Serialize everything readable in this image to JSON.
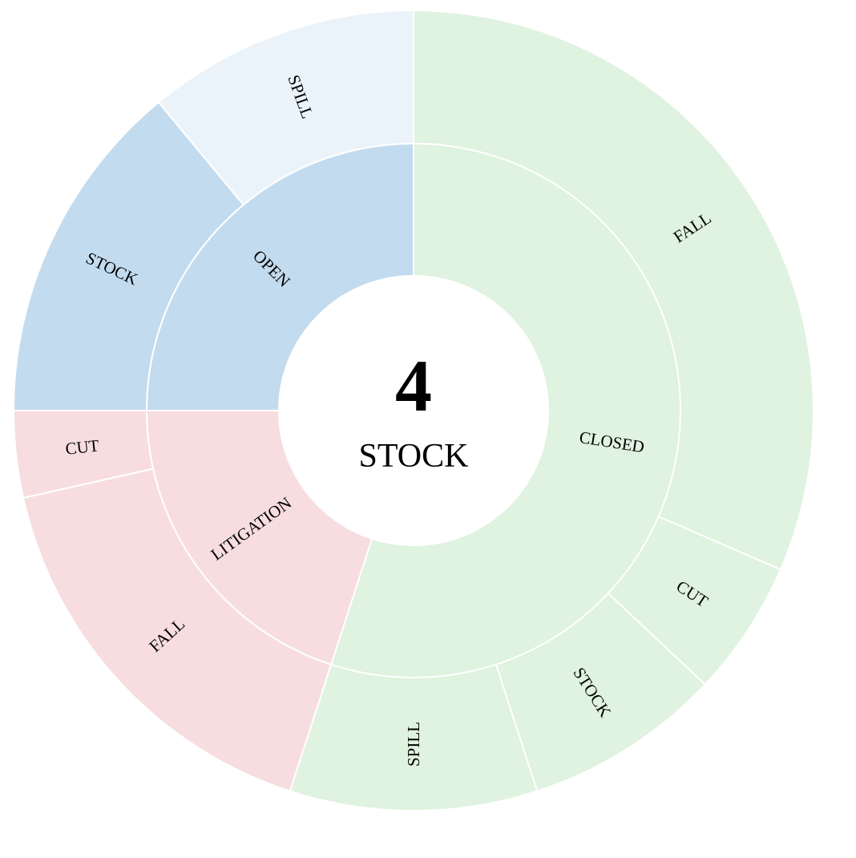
{
  "chart_data": {
    "type": "sunburst",
    "center": {
      "value": "4",
      "label": "STOCK"
    },
    "rings": [
      "status",
      "type"
    ],
    "nodes": [
      {
        "label": "CLOSED",
        "value": 55,
        "color": "#e0f2e0",
        "children": [
          {
            "label": "FALL",
            "value": 31.5
          },
          {
            "label": "CUT",
            "value": 5.5
          },
          {
            "label": "STOCK",
            "value": 8
          },
          {
            "label": "SPILL",
            "value": 10
          }
        ]
      },
      {
        "label": "LITIGATION",
        "value": 20,
        "color": "#f7dde0",
        "children": [
          {
            "label": "FALL",
            "value": 16.5
          },
          {
            "label": "CUT",
            "value": 3.5
          }
        ]
      },
      {
        "label": "OPEN",
        "value": 25,
        "color": "#c3dbee",
        "children": [
          {
            "label": "STOCK",
            "value": 14,
            "color": "#c3dbee"
          },
          {
            "label": "SPILL",
            "value": 11,
            "color": "#eaf3fa"
          }
        ]
      }
    ]
  }
}
